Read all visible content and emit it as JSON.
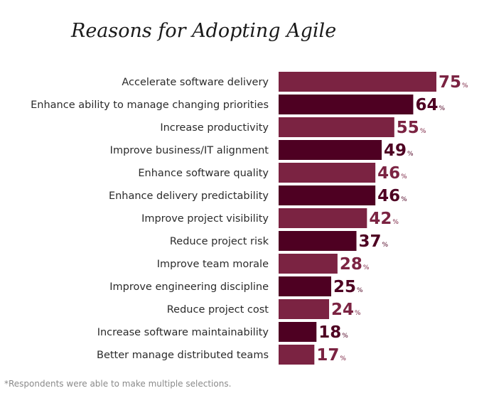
{
  "chart_data": {
    "type": "bar",
    "orientation": "horizontal",
    "title": "Reasons for Adopting Agile",
    "categories": [
      "Accelerate software delivery",
      "Enhance ability to manage changing priorities",
      "Increase productivity",
      "Improve business/IT alignment",
      "Enhance software quality",
      "Enhance delivery predictability",
      "Improve project visibility",
      "Reduce project risk",
      "Improve team morale",
      "Improve engineering discipline",
      "Reduce project cost",
      "Increase software maintainability",
      "Better manage distributed teams"
    ],
    "values": [
      75,
      64,
      55,
      49,
      46,
      46,
      42,
      37,
      28,
      25,
      24,
      18,
      17
    ],
    "value_suffix": "%",
    "xlim": [
      0,
      75
    ],
    "grid": false,
    "legend": "none",
    "colors": {
      "light": "#7b2342",
      "dark": "#4e0022"
    },
    "footnote": "*Respondents were able to make multiple selections."
  }
}
